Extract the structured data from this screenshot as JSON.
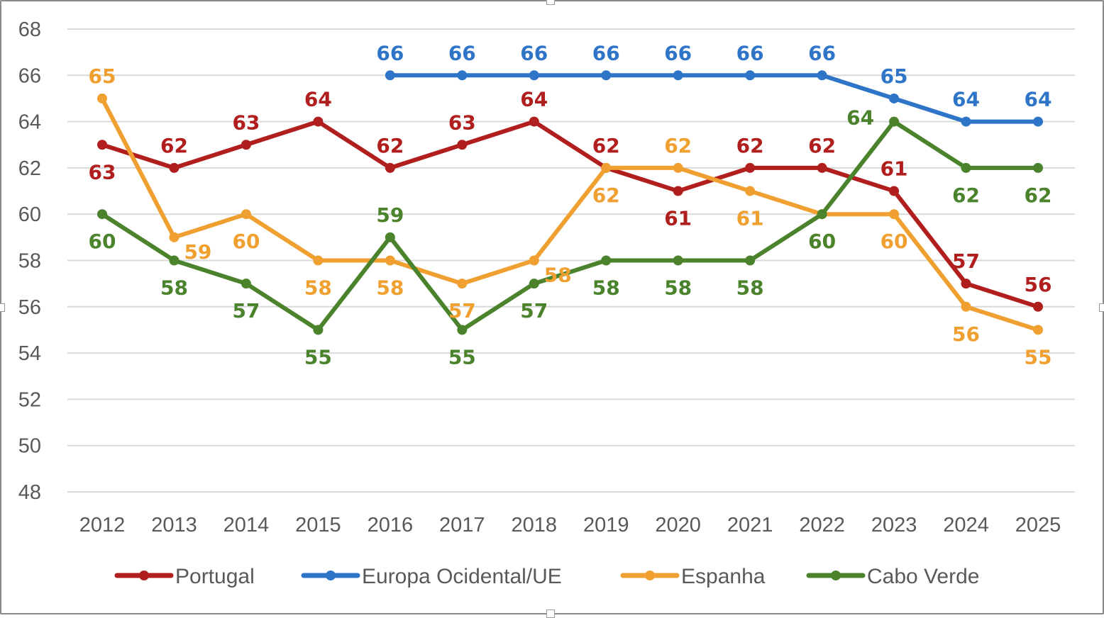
{
  "chart_data": {
    "type": "line",
    "title": "",
    "xlabel": "",
    "ylabel": "",
    "x": [
      "2012",
      "2013",
      "2014",
      "2015",
      "2016",
      "2017",
      "2018",
      "2019",
      "2020",
      "2021",
      "2022",
      "2023",
      "2024",
      "2025"
    ],
    "ylim": [
      48,
      68
    ],
    "yticks": [
      48,
      50,
      52,
      54,
      56,
      58,
      60,
      62,
      64,
      66,
      68
    ],
    "grid": true,
    "legend_position": "bottom",
    "series": [
      {
        "name": "Portugal",
        "color": "#B01E1E",
        "values": [
          63,
          62,
          63,
          64,
          62,
          63,
          64,
          62,
          61,
          62,
          62,
          61,
          57,
          56
        ],
        "label_pos": [
          "below",
          "above",
          "above",
          "above",
          "above",
          "above",
          "above",
          "above",
          "below",
          "above",
          "above",
          "above",
          "above",
          "above"
        ]
      },
      {
        "name": "Europa Ocidental/UE",
        "color": "#2E75C8",
        "values": [
          null,
          null,
          null,
          null,
          66,
          66,
          66,
          66,
          66,
          66,
          66,
          65,
          64,
          64
        ],
        "label_pos": [
          "above",
          "above",
          "above",
          "above",
          "above",
          "above",
          "above",
          "above",
          "above",
          "above",
          "above",
          "above",
          "above",
          "above"
        ]
      },
      {
        "name": "Espanha",
        "color": "#F0A030",
        "values": [
          65,
          59,
          60,
          58,
          58,
          57,
          58,
          62,
          62,
          61,
          60,
          60,
          56,
          55
        ],
        "label_pos": [
          "above",
          "right",
          "below",
          "below",
          "below",
          "below",
          "right",
          "below",
          "above",
          "below",
          "below",
          "below",
          "below",
          "below"
        ]
      },
      {
        "name": "Cabo Verde",
        "color": "#4A832C",
        "values": [
          60,
          58,
          57,
          55,
          59,
          55,
          57,
          58,
          58,
          58,
          60,
          64,
          62,
          62
        ],
        "label_pos": [
          "below",
          "below",
          "below",
          "below",
          "above",
          "below",
          "below",
          "below",
          "below",
          "below",
          "below",
          "left",
          "below",
          "below"
        ]
      }
    ]
  }
}
